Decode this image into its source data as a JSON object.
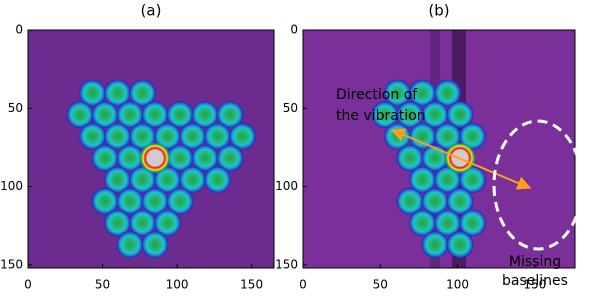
{
  "chart_data": [
    {
      "type": "image",
      "title": "(a)",
      "xlim": [
        0,
        165
      ],
      "ylim": [
        0,
        152
      ],
      "y_inverted": true,
      "xticks": [
        0,
        50,
        100,
        150
      ],
      "yticks": [
        0,
        50,
        100,
        150
      ],
      "color": "#6b2b8f"
    },
    {
      "type": "image",
      "title": "(b)",
      "xlim": [
        0,
        176
      ],
      "ylim": [
        0,
        152
      ],
      "y_inverted": true,
      "xticks": [
        0,
        50,
        100,
        150
      ],
      "yticks": [
        0,
        50,
        100,
        150
      ],
      "color": "#7a2f9a",
      "annotations": [
        {
          "lines": [
            "Direction of",
            "the vibration"
          ],
          "color": "#ff9f1a"
        },
        {
          "lines": [
            "Missing",
            "baselines"
          ],
          "color": "#ffffff"
        }
      ]
    }
  ]
}
